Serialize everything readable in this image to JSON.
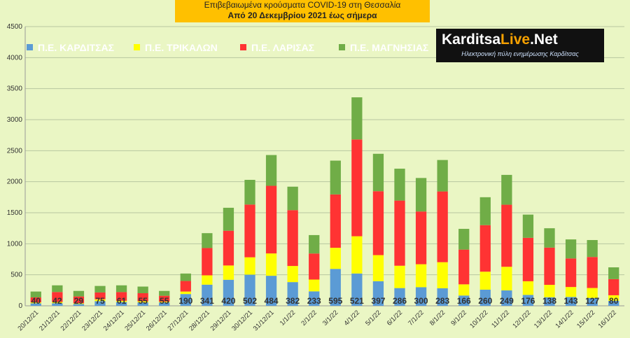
{
  "header": {
    "title_line1": "Επιβεβαιωμένα κρούσματα COVID-19 στη Θεσσαλία",
    "title_line2": "Από 20 Δεκεμβρίου 2021 έως σήμερα"
  },
  "logo": {
    "name_part1": "Karditsa",
    "name_part2": "Live",
    "name_part3": ".Net",
    "tagline": "Ηλεκτρονική πύλη ενημέρωσης Καρδίτσας"
  },
  "chart_data": {
    "type": "bar",
    "stacked": true,
    "grid": true,
    "legend_position": "top-left",
    "ylim": [
      0,
      4500
    ],
    "yticks": [
      0,
      500,
      1000,
      1500,
      2000,
      2500,
      3000,
      3500,
      4000,
      4500
    ],
    "categories": [
      "20/12/21",
      "21/12/21",
      "22/12/21",
      "23/12/21",
      "24/12/21",
      "25/12/21",
      "26/12/21",
      "27/12/21",
      "28/12/21",
      "29/12/21",
      "30/12/21",
      "31/12/21",
      "1/1/22",
      "2/1/22",
      "3/1/22",
      "4/1/22",
      "5/1/22",
      "6/1/22",
      "7/1/22",
      "8/1/22",
      "9/1/22",
      "10/1/22",
      "11/1/22",
      "12/1/22",
      "13/1/22",
      "14/1/22",
      "15/1/22",
      "16/1/22"
    ],
    "series": [
      {
        "name": "Π.Ε. ΚΑΡΔΙΤΣΑΣ",
        "color": "#5b9bd5",
        "values": [
          40,
          42,
          29,
          75,
          61,
          55,
          55,
          190,
          341,
          420,
          502,
          484,
          382,
          233,
          595,
          521,
          397,
          286,
          300,
          283,
          166,
          260,
          249,
          176,
          138,
          143,
          127,
          80
        ]
      },
      {
        "name": "Π.Ε. ΤΡΙΚΑΛΩΝ",
        "color": "#ffff00",
        "values": [
          15,
          20,
          12,
          30,
          20,
          18,
          12,
          40,
          150,
          230,
          280,
          360,
          260,
          190,
          340,
          600,
          420,
          360,
          370,
          420,
          180,
          290,
          380,
          220,
          200,
          160,
          160,
          90
        ]
      },
      {
        "name": "Π.Ε. ΛΑΡΙΣΑΣ",
        "color": "#ff3333",
        "values": [
          80,
          160,
          110,
          110,
          140,
          130,
          95,
          170,
          440,
          560,
          850,
          1090,
          900,
          420,
          860,
          1560,
          1030,
          1050,
          850,
          1140,
          560,
          750,
          1000,
          700,
          600,
          460,
          500,
          260
        ]
      },
      {
        "name": "Π.Ε. ΜΑΓΝΗΣΙΑΣ",
        "color": "#70ad47",
        "values": [
          95,
          108,
          89,
          105,
          109,
          107,
          78,
          120,
          240,
          370,
          398,
          496,
          378,
          297,
          545,
          679,
          603,
          514,
          540,
          507,
          334,
          450,
          481,
          374,
          312,
          307,
          273,
          190
        ]
      }
    ]
  }
}
